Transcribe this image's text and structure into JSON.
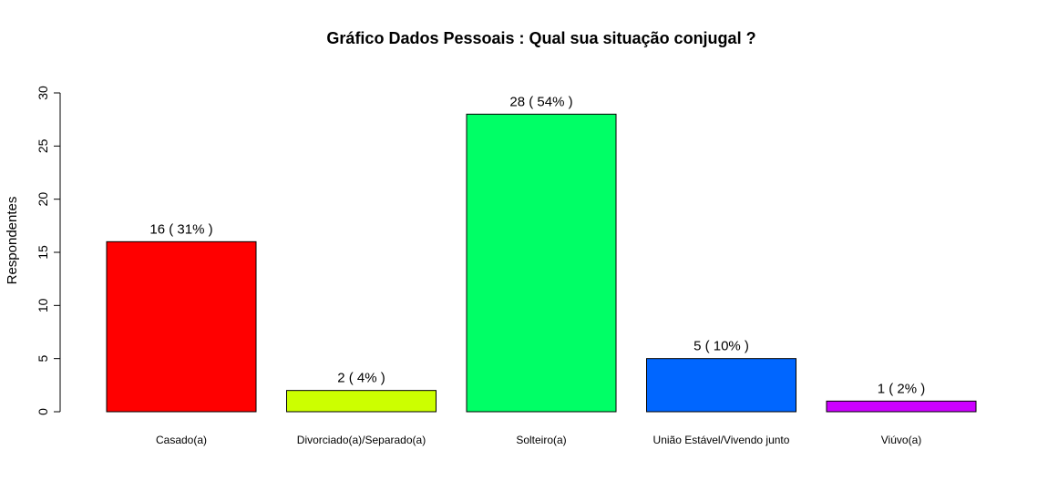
{
  "chart_data": {
    "type": "bar",
    "title": "Gráfico Dados Pessoais : Qual sua situação conjugal ?",
    "xlabel": "",
    "ylabel": "Respondentes",
    "ylim": [
      0,
      30
    ],
    "yticks": [
      0,
      5,
      10,
      15,
      20,
      25,
      30
    ],
    "grid": false,
    "categories": [
      "Casado(a)",
      "Divorciado(a)/Separado(a)",
      "Solteiro(a)",
      "União Estável/Vivendo junto",
      "Viúvo(a)"
    ],
    "values": [
      16,
      2,
      28,
      5,
      1
    ],
    "data_labels": [
      "16  ( 31% )",
      "2  ( 4% )",
      "28  ( 54% )",
      "5  ( 10% )",
      "1  ( 2% )"
    ],
    "colors": [
      "#FF0000",
      "#CCFF00",
      "#00FF66",
      "#0066FF",
      "#CC00FF"
    ]
  }
}
